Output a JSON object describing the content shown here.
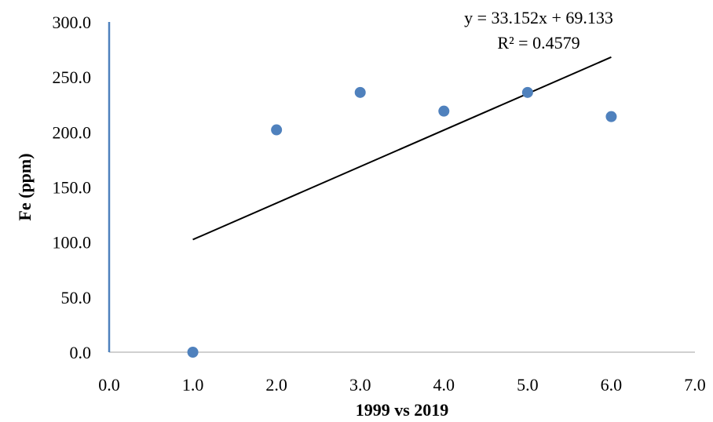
{
  "chart_data": {
    "type": "scatter",
    "title": "",
    "xlabel": "1999 vs 2019",
    "ylabel": "Fe (ppm)",
    "xlim": [
      0.0,
      7.0
    ],
    "ylim": [
      0.0,
      300.0
    ],
    "x_ticks": [
      "0.0",
      "1.0",
      "2.0",
      "3.0",
      "4.0",
      "5.0",
      "6.0",
      "7.0"
    ],
    "y_ticks": [
      "0.0",
      "50.0",
      "100.0",
      "150.0",
      "200.0",
      "250.0",
      "300.0"
    ],
    "grid": false,
    "legend": "none",
    "series": [
      {
        "x": [
          1,
          2,
          3,
          4,
          5,
          6
        ],
        "y": [
          0,
          202,
          236,
          219,
          236,
          214
        ],
        "color": "#4f81bd"
      }
    ],
    "trendline": {
      "slope": 33.152,
      "intercept": 69.133,
      "x_range": [
        1,
        6
      ],
      "equation": "y = 33.152x + 69.133",
      "r_squared": "R² = 0.4579",
      "color": "#000000"
    },
    "colors": {
      "y_axis": "#4f81bd",
      "x_axis": "#c0c0c0"
    }
  }
}
